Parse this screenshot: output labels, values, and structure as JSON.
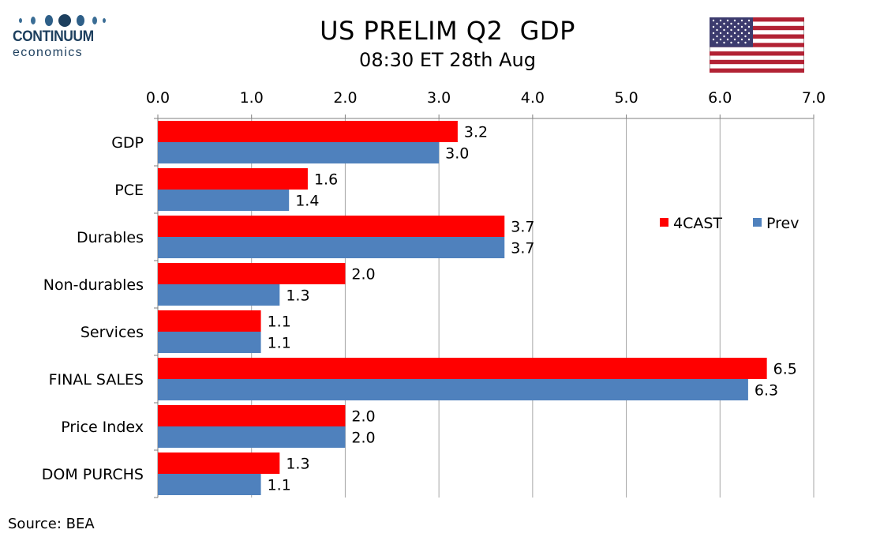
{
  "logo": {
    "name": "CONTINUUM",
    "sub": "economics"
  },
  "header": {
    "title": "US PRELIM Q2  GDP",
    "subtitle": "08:30 ET 28th Aug"
  },
  "footer": {
    "source": "Source: BEA"
  },
  "colors": {
    "series_4cast": "#ff0000",
    "series_prev": "#4f81bd",
    "grid": "#a6a6a6",
    "logo": "#1d3f5e"
  },
  "chart_data": {
    "type": "bar",
    "orientation": "horizontal",
    "categories": [
      "GDP",
      "PCE",
      "Durables",
      "Non-durables",
      "Services",
      "FINAL SALES",
      "Price Index",
      "DOM PURCHS"
    ],
    "series": [
      {
        "name": "4CAST",
        "color": "#ff0000",
        "values": [
          3.2,
          1.6,
          3.7,
          2.0,
          1.1,
          6.5,
          2.0,
          1.3
        ],
        "labels": [
          "3.2",
          "1.6",
          "3.7",
          "2.0",
          "1.1",
          "6.5",
          "2.0",
          "1.3"
        ]
      },
      {
        "name": "Prev",
        "color": "#4f81bd",
        "values": [
          3.0,
          1.4,
          3.7,
          1.3,
          1.1,
          6.3,
          2.0,
          1.1
        ],
        "labels": [
          "3.0",
          "1.4",
          "3.7",
          "1.3",
          "1.1",
          "6.3",
          "2.0",
          "1.1"
        ]
      }
    ],
    "xlim": [
      0,
      7
    ],
    "ticks": [
      "0.0",
      "1.0",
      "2.0",
      "3.0",
      "4.0",
      "5.0",
      "6.0",
      "7.0"
    ],
    "tick_values": [
      0,
      1,
      2,
      3,
      4,
      5,
      6,
      7
    ],
    "axis_position": "top",
    "grid": true,
    "legend": "right"
  }
}
